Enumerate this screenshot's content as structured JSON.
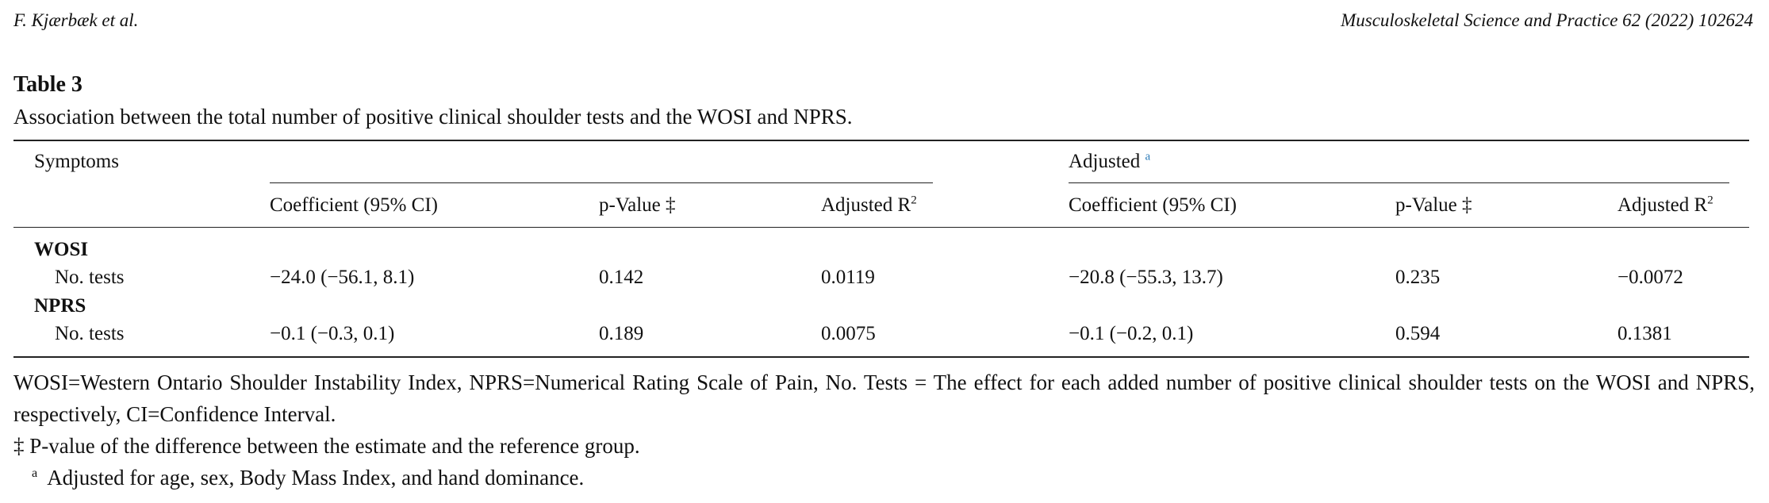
{
  "header": {
    "left": "F. Kjærbæk et al.",
    "right": "Musculoskeletal Science and Practice 62 (2022) 102624"
  },
  "table": {
    "label": "Table 3",
    "caption": "Association between the total number of positive clinical shoulder tests and the WOSI and NPRS.",
    "row_header": "Symptoms",
    "adjusted_header": "Adjusted",
    "adjusted_note": "a",
    "columns": [
      {
        "label": "Coefficient (95% CI)"
      },
      {
        "label": "p-Value ‡"
      },
      {
        "label": "Adjusted R",
        "sup": "2"
      },
      {
        "label": "Coefficient (95% CI)"
      },
      {
        "label": "p-Value ‡"
      },
      {
        "label": "Adjusted R",
        "sup": "2"
      }
    ],
    "sections": [
      {
        "name": "WOSI",
        "rows": [
          {
            "label": "No. tests",
            "cells": [
              "−24.0 (−56.1, 8.1)",
              "0.142",
              "0.0119",
              "−20.8 (−55.3, 13.7)",
              "0.235",
              "−0.0072"
            ]
          }
        ]
      },
      {
        "name": "NPRS",
        "rows": [
          {
            "label": "No. tests",
            "cells": [
              "−0.1 (−0.3, 0.1)",
              "0.189",
              "0.0075",
              "−0.1 (−0.2, 0.1)",
              "0.594",
              "0.1381"
            ]
          }
        ]
      }
    ]
  },
  "footnotes": [
    {
      "text": "WOSI=Western Ontario Shoulder Instability Index, NPRS=Numerical Rating Scale of Pain, No. Tests = The effect for each added number of positive clinical shoulder tests on the WOSI and NPRS, respectively, CI=Confidence Interval."
    },
    {
      "text": "‡ P-value of the difference between the estimate and the reference group."
    },
    {
      "mark": "a",
      "text": "Adjusted for age, sex, Body Mass Index, and hand dominance."
    }
  ]
}
